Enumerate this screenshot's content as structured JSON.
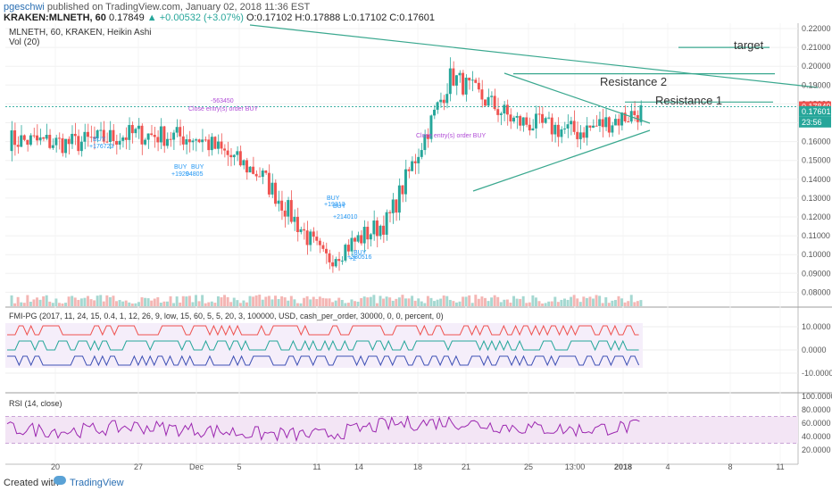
{
  "header": {
    "user": "pgeschwi",
    "published": "published on TradingView.com, January 02, 2018 11:36 EST",
    "symbol": "KRAKEN:MLNETH, 60",
    "last": "0.17849",
    "change_arrow": "▲",
    "change": "+0.00532 (+3.07%)",
    "ohlc": "O:0.17102 H:0.17888 L:0.17102 C:0.17601"
  },
  "main_legend": {
    "series": "MLNETH, 60, KRAKEN, Heikin Ashi",
    "volume": "Vol (20)"
  },
  "annotations": {
    "target": "target",
    "resistance2": "Resistance 2",
    "resistance1": "Resistance 1",
    "trades": [
      "-563450",
      "Close entry(s) order BUY",
      "BUY",
      "+176723",
      "BUY",
      "BUY",
      "+1929",
      "04805",
      "BUY",
      "+19313",
      "BUY",
      "+214010",
      "BUY",
      "+2",
      "+380516",
      "Close entry(s) order BUY"
    ]
  },
  "price_axis": {
    "ticks": [
      "0.22000",
      "0.21000",
      "0.20000",
      "0.19000",
      "0.18000",
      "0.17000",
      "0.16000",
      "0.15000",
      "0.14000",
      "0.13000",
      "0.12000",
      "0.11000",
      "0.10000",
      "0.09000",
      "0.08000"
    ],
    "label_last": "0.17849",
    "label_close": "0.17601",
    "label_countdown": "23:56"
  },
  "fmi_pane": {
    "title": "FMI-PG (2017, 11, 24, 15, 0.4, 1, 12, 26, 9, low, 15, 60, 5, 5, 20, 3, 100000, USD, cash_per_order, 30000, 0, 0, percent, 0)",
    "ticks": [
      "10.0000",
      "0.0000",
      "-10.0000"
    ]
  },
  "rsi_pane": {
    "title": "RSI (14, close)",
    "ticks": [
      "100.0000",
      "80.0000",
      "60.0000",
      "40.0000",
      "20.0000"
    ]
  },
  "time_axis": {
    "labels": [
      "20",
      "27",
      "Dec",
      "5",
      "11",
      "14",
      "18",
      "21",
      "25",
      "13:00",
      "2018",
      "4",
      "8",
      "11"
    ]
  },
  "footer": {
    "created": "Created with",
    "brand": "TradingView"
  },
  "colors": {
    "up": "#26a69a",
    "down": "#ef5350",
    "trendline": "#3aa88f",
    "rsi": "#9c27b0",
    "trade": "#2196f3",
    "close": "#b04bd6"
  },
  "chart_data": [
    {
      "type": "candlestick",
      "title": "MLNETH, 60, KRAKEN, Heikin Ashi",
      "ylim": [
        0.07,
        0.225
      ],
      "x": [
        "20",
        "27",
        "Dec",
        "5",
        "11",
        "14",
        "18",
        "21",
        "25",
        "13:00",
        "2018"
      ],
      "close": [
        0.161,
        0.159,
        0.164,
        0.162,
        0.142,
        0.097,
        0.118,
        0.195,
        0.171,
        0.165,
        0.176
      ],
      "horizontal_levels": {
        "target": 0.21,
        "resistance2": 0.196,
        "resistance1": 0.181
      },
      "last_price": 0.17849,
      "last_close": 0.17601
    },
    {
      "type": "line",
      "title": "RSI (14, close)",
      "ylim": [
        10,
        100
      ],
      "x": [
        "20",
        "27",
        "Dec",
        "5",
        "11",
        "14",
        "18",
        "21",
        "25",
        "13:00",
        "2018"
      ],
      "series": [
        {
          "values": [
            52,
            48,
            55,
            50,
            44,
            42,
            58,
            62,
            54,
            50,
            55
          ]
        }
      ]
    }
  ]
}
